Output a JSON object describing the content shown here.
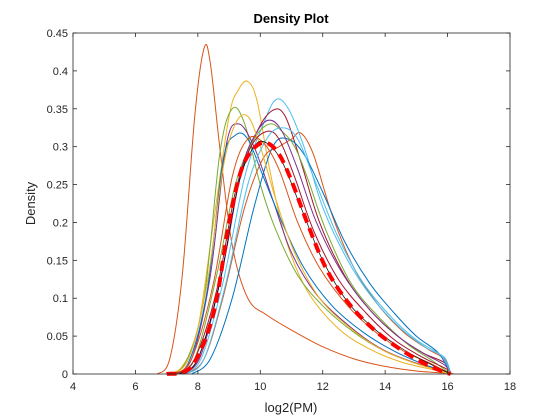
{
  "chart_data": {
    "type": "line",
    "title": "Density Plot",
    "xlabel": "log2(PM)",
    "ylabel": "Density",
    "xlim": [
      4,
      18
    ],
    "ylim": [
      0,
      0.45
    ],
    "xticks": [
      4,
      6,
      8,
      10,
      12,
      14,
      16,
      18
    ],
    "yticks": [
      0,
      0.05,
      0.1,
      0.15,
      0.2,
      0.25,
      0.3,
      0.35,
      0.4,
      0.45
    ],
    "ytick_labels": [
      "0",
      "0.05",
      "0.1",
      "0.15",
      "0.2",
      "0.25",
      "0.3",
      "0.35",
      "0.4",
      "0.45"
    ],
    "grid": false,
    "box": true,
    "series": [
      {
        "color": "#D95319",
        "width": 1,
        "points": [
          [
            6.7,
            0
          ],
          [
            7.1,
            0.02
          ],
          [
            7.5,
            0.13
          ],
          [
            7.9,
            0.34
          ],
          [
            8.2,
            0.43
          ],
          [
            8.4,
            0.41
          ],
          [
            8.7,
            0.3
          ],
          [
            9.1,
            0.17
          ],
          [
            9.6,
            0.1
          ],
          [
            10.2,
            0.078
          ],
          [
            11.0,
            0.058
          ],
          [
            12.0,
            0.036
          ],
          [
            13.0,
            0.02
          ],
          [
            14.0,
            0.01
          ],
          [
            15.0,
            0.004
          ],
          [
            16.0,
            0.001
          ],
          [
            16.2,
            0
          ]
        ]
      },
      {
        "color": "#EDB120",
        "width": 1,
        "points": [
          [
            7.0,
            0
          ],
          [
            7.5,
            0.01
          ],
          [
            8.0,
            0.06
          ],
          [
            8.5,
            0.2
          ],
          [
            9.0,
            0.34
          ],
          [
            9.3,
            0.375
          ],
          [
            9.6,
            0.386
          ],
          [
            9.9,
            0.36
          ],
          [
            10.3,
            0.27
          ],
          [
            10.8,
            0.18
          ],
          [
            11.5,
            0.11
          ],
          [
            12.5,
            0.06
          ],
          [
            13.5,
            0.033
          ],
          [
            14.5,
            0.016
          ],
          [
            15.5,
            0.006
          ],
          [
            16.1,
            0
          ]
        ]
      },
      {
        "color": "#77AC30",
        "width": 1,
        "points": [
          [
            7.0,
            0
          ],
          [
            7.6,
            0.015
          ],
          [
            8.2,
            0.1
          ],
          [
            8.7,
            0.29
          ],
          [
            9.1,
            0.35
          ],
          [
            9.5,
            0.33
          ],
          [
            10.0,
            0.25
          ],
          [
            10.5,
            0.19
          ],
          [
            11.2,
            0.13
          ],
          [
            12.0,
            0.09
          ],
          [
            13.0,
            0.055
          ],
          [
            14.0,
            0.03
          ],
          [
            15.0,
            0.014
          ],
          [
            16.0,
            0.003
          ],
          [
            16.1,
            0
          ]
        ]
      },
      {
        "color": "#7E2F8E",
        "width": 1,
        "points": [
          [
            7.2,
            0
          ],
          [
            7.8,
            0.02
          ],
          [
            8.4,
            0.13
          ],
          [
            8.9,
            0.3
          ],
          [
            9.3,
            0.33
          ],
          [
            9.8,
            0.3
          ],
          [
            10.4,
            0.23
          ],
          [
            11.0,
            0.16
          ],
          [
            11.8,
            0.105
          ],
          [
            12.8,
            0.065
          ],
          [
            13.8,
            0.035
          ],
          [
            14.8,
            0.017
          ],
          [
            15.8,
            0.005
          ],
          [
            16.1,
            0
          ]
        ]
      },
      {
        "color": "#0072BD",
        "width": 1,
        "points": [
          [
            7.1,
            0
          ],
          [
            7.7,
            0.015
          ],
          [
            8.3,
            0.11
          ],
          [
            8.8,
            0.28
          ],
          [
            9.2,
            0.315
          ],
          [
            9.6,
            0.31
          ],
          [
            10.1,
            0.26
          ],
          [
            10.7,
            0.2
          ],
          [
            11.4,
            0.14
          ],
          [
            12.3,
            0.09
          ],
          [
            13.3,
            0.055
          ],
          [
            14.3,
            0.03
          ],
          [
            15.3,
            0.012
          ],
          [
            16.0,
            0.003
          ],
          [
            16.1,
            0
          ]
        ]
      },
      {
        "color": "#D95319",
        "width": 1,
        "points": [
          [
            7.6,
            0
          ],
          [
            8.2,
            0.02
          ],
          [
            8.8,
            0.1
          ],
          [
            9.5,
            0.22
          ],
          [
            10.1,
            0.285
          ],
          [
            10.6,
            0.3
          ],
          [
            11.0,
            0.31
          ],
          [
            11.3,
            0.318
          ],
          [
            11.7,
            0.29
          ],
          [
            12.3,
            0.21
          ],
          [
            13.0,
            0.14
          ],
          [
            13.8,
            0.09
          ],
          [
            14.6,
            0.055
          ],
          [
            15.4,
            0.032
          ],
          [
            15.9,
            0.02
          ],
          [
            16.1,
            0
          ]
        ]
      },
      {
        "color": "#4DBEEE",
        "width": 1,
        "points": [
          [
            7.5,
            0
          ],
          [
            8.1,
            0.02
          ],
          [
            8.8,
            0.12
          ],
          [
            9.5,
            0.26
          ],
          [
            10.1,
            0.33
          ],
          [
            10.5,
            0.362
          ],
          [
            10.9,
            0.35
          ],
          [
            11.4,
            0.3
          ],
          [
            12.0,
            0.22
          ],
          [
            12.8,
            0.15
          ],
          [
            13.6,
            0.1
          ],
          [
            14.5,
            0.06
          ],
          [
            15.3,
            0.035
          ],
          [
            15.9,
            0.022
          ],
          [
            16.1,
            0
          ]
        ]
      },
      {
        "color": "#A2142F",
        "width": 1,
        "points": [
          [
            7.4,
            0
          ],
          [
            8.0,
            0.02
          ],
          [
            8.7,
            0.12
          ],
          [
            9.3,
            0.25
          ],
          [
            9.9,
            0.32
          ],
          [
            10.4,
            0.348
          ],
          [
            10.8,
            0.34
          ],
          [
            11.3,
            0.28
          ],
          [
            11.9,
            0.2
          ],
          [
            12.7,
            0.13
          ],
          [
            13.5,
            0.085
          ],
          [
            14.4,
            0.05
          ],
          [
            15.2,
            0.028
          ],
          [
            15.9,
            0.015
          ],
          [
            16.1,
            0
          ]
        ]
      },
      {
        "color": "#0072BD",
        "width": 1,
        "points": [
          [
            7.8,
            0
          ],
          [
            8.4,
            0.02
          ],
          [
            9.1,
            0.1
          ],
          [
            9.8,
            0.22
          ],
          [
            10.4,
            0.3
          ],
          [
            10.9,
            0.31
          ],
          [
            11.4,
            0.29
          ],
          [
            12.0,
            0.24
          ],
          [
            12.7,
            0.175
          ],
          [
            13.5,
            0.12
          ],
          [
            14.3,
            0.08
          ],
          [
            15.0,
            0.05
          ],
          [
            15.7,
            0.028
          ],
          [
            16.1,
            0
          ]
        ]
      },
      {
        "color": "#77AC30",
        "width": 1,
        "points": [
          [
            7.3,
            0
          ],
          [
            7.9,
            0.02
          ],
          [
            8.6,
            0.13
          ],
          [
            9.2,
            0.25
          ],
          [
            9.8,
            0.31
          ],
          [
            10.3,
            0.33
          ],
          [
            10.7,
            0.32
          ],
          [
            11.1,
            0.3
          ],
          [
            11.5,
            0.26
          ],
          [
            12.1,
            0.19
          ],
          [
            12.9,
            0.12
          ],
          [
            13.8,
            0.075
          ],
          [
            14.7,
            0.04
          ],
          [
            15.5,
            0.018
          ],
          [
            16.1,
            0
          ]
        ]
      },
      {
        "color": "#7E2F8E",
        "width": 1,
        "points": [
          [
            7.5,
            0
          ],
          [
            8.1,
            0.025
          ],
          [
            8.8,
            0.14
          ],
          [
            9.4,
            0.27
          ],
          [
            9.9,
            0.32
          ],
          [
            10.3,
            0.335
          ],
          [
            10.7,
            0.32
          ],
          [
            11.2,
            0.27
          ],
          [
            11.8,
            0.2
          ],
          [
            12.6,
            0.135
          ],
          [
            13.5,
            0.085
          ],
          [
            14.4,
            0.05
          ],
          [
            15.2,
            0.028
          ],
          [
            15.9,
            0.012
          ],
          [
            16.1,
            0
          ]
        ]
      },
      {
        "color": "#EDB120",
        "width": 1,
        "points": [
          [
            7.1,
            0
          ],
          [
            7.7,
            0.02
          ],
          [
            8.3,
            0.12
          ],
          [
            8.8,
            0.27
          ],
          [
            9.2,
            0.33
          ],
          [
            9.6,
            0.34
          ],
          [
            10.0,
            0.3
          ],
          [
            10.5,
            0.23
          ],
          [
            11.1,
            0.16
          ],
          [
            11.9,
            0.1
          ],
          [
            12.9,
            0.06
          ],
          [
            13.9,
            0.032
          ],
          [
            14.9,
            0.015
          ],
          [
            15.8,
            0.004
          ],
          [
            16.1,
            0
          ]
        ]
      },
      {
        "color": "#A2142F",
        "width": 1,
        "points": [
          [
            7.3,
            0
          ],
          [
            7.9,
            0.02
          ],
          [
            8.6,
            0.11
          ],
          [
            9.2,
            0.24
          ],
          [
            9.7,
            0.3
          ],
          [
            10.2,
            0.32
          ],
          [
            10.6,
            0.31
          ],
          [
            11.1,
            0.26
          ],
          [
            11.7,
            0.19
          ],
          [
            12.5,
            0.125
          ],
          [
            13.4,
            0.08
          ],
          [
            14.3,
            0.045
          ],
          [
            15.2,
            0.022
          ],
          [
            16.0,
            0.006
          ],
          [
            16.1,
            0
          ]
        ]
      },
      {
        "color": "#4DBEEE",
        "width": 1,
        "points": [
          [
            7.6,
            0
          ],
          [
            8.2,
            0.02
          ],
          [
            8.9,
            0.12
          ],
          [
            9.6,
            0.25
          ],
          [
            10.2,
            0.31
          ],
          [
            10.7,
            0.325
          ],
          [
            11.2,
            0.31
          ],
          [
            11.8,
            0.25
          ],
          [
            12.5,
            0.18
          ],
          [
            13.3,
            0.12
          ],
          [
            14.2,
            0.075
          ],
          [
            15.0,
            0.045
          ],
          [
            15.8,
            0.024
          ],
          [
            16.1,
            0
          ]
        ]
      },
      {
        "color": "#D95319",
        "width": 1,
        "points": [
          [
            7.2,
            0
          ],
          [
            7.8,
            0.02
          ],
          [
            8.5,
            0.12
          ],
          [
            9.1,
            0.26
          ],
          [
            9.6,
            0.31
          ],
          [
            10.1,
            0.305
          ],
          [
            10.6,
            0.27
          ],
          [
            11.2,
            0.2
          ],
          [
            11.9,
            0.14
          ],
          [
            12.8,
            0.09
          ],
          [
            13.7,
            0.055
          ],
          [
            14.6,
            0.03
          ],
          [
            15.5,
            0.013
          ],
          [
            16.1,
            0
          ]
        ]
      },
      {
        "color": "#000000",
        "width": 0.7,
        "points": [
          [
            7.4,
            0
          ],
          [
            8.0,
            0.02
          ],
          [
            8.7,
            0.12
          ],
          [
            9.3,
            0.25
          ],
          [
            9.8,
            0.3
          ],
          [
            10.2,
            0.305
          ],
          [
            10.7,
            0.28
          ],
          [
            11.3,
            0.22
          ],
          [
            12.0,
            0.15
          ],
          [
            12.8,
            0.095
          ],
          [
            13.7,
            0.058
          ],
          [
            14.6,
            0.032
          ],
          [
            15.5,
            0.012
          ],
          [
            16.1,
            0
          ]
        ]
      },
      {
        "color": "#FF0000",
        "width": 4,
        "dash": "10,6",
        "points": [
          [
            7.0,
            0
          ],
          [
            7.8,
            0.01
          ],
          [
            8.5,
            0.08
          ],
          [
            9.0,
            0.2
          ],
          [
            9.4,
            0.27
          ],
          [
            9.8,
            0.298
          ],
          [
            10.2,
            0.305
          ],
          [
            10.6,
            0.29
          ],
          [
            11.0,
            0.255
          ],
          [
            11.5,
            0.2
          ],
          [
            12.1,
            0.14
          ],
          [
            12.8,
            0.095
          ],
          [
            13.6,
            0.06
          ],
          [
            14.4,
            0.035
          ],
          [
            15.2,
            0.015
          ],
          [
            15.8,
            0.004
          ],
          [
            16.1,
            0
          ]
        ]
      }
    ]
  }
}
